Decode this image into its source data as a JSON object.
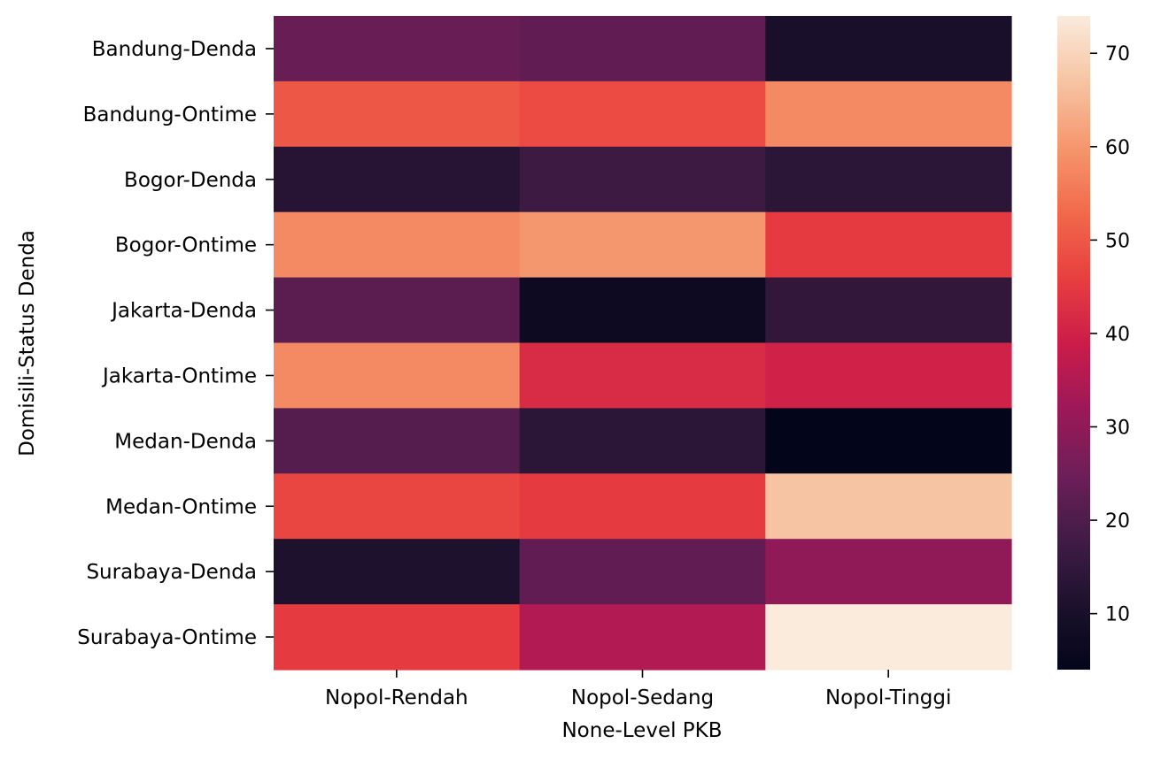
{
  "chart_data": {
    "type": "heatmap",
    "title": "",
    "xlabel": "None-Level PKB",
    "ylabel": "Domisili-Status Denda",
    "x_categories": [
      "Nopol-Rendah",
      "Nopol-Sedang",
      "Nopol-Tinggi"
    ],
    "y_categories": [
      "Bandung-Denda",
      "Bandung-Ontime",
      "Bogor-Denda",
      "Bogor-Ontime",
      "Jakarta-Denda",
      "Jakarta-Ontime",
      "Medan-Denda",
      "Medan-Ontime",
      "Surabaya-Denda",
      "Surabaya-Ontime"
    ],
    "values": [
      [
        24,
        23,
        10
      ],
      [
        50,
        48,
        58
      ],
      [
        13,
        17,
        14
      ],
      [
        58,
        60,
        45
      ],
      [
        22,
        7,
        15
      ],
      [
        58,
        42,
        40
      ],
      [
        21,
        14,
        4
      ],
      [
        47,
        45,
        67
      ],
      [
        11,
        23,
        30
      ],
      [
        45,
        35,
        74
      ]
    ],
    "colorbar": {
      "range": [
        4,
        74
      ],
      "ticks": [
        10,
        20,
        30,
        40,
        50,
        60,
        70
      ],
      "colormap": "rocket"
    }
  }
}
